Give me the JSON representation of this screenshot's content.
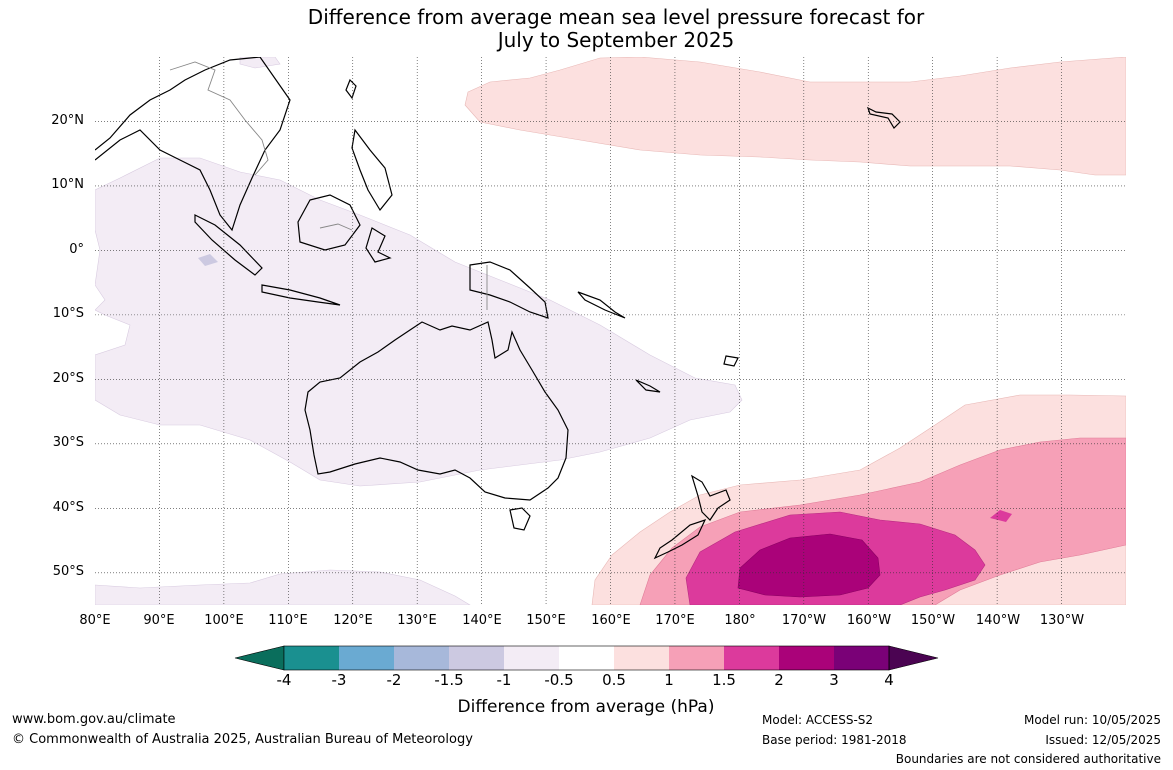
{
  "title": {
    "line1": "Difference from average mean sea level pressure forecast for",
    "line2": "July to September 2025"
  },
  "map": {
    "type": "filled-contour anomaly map",
    "extent": {
      "lon_min": 80,
      "lon_max": 240,
      "lat_min": -55,
      "lat_max": 30
    },
    "graticule": "dotted",
    "lat_labels": [
      "20°N",
      "10°N",
      "0°",
      "10°S",
      "20°S",
      "30°S",
      "40°S",
      "50°S"
    ],
    "lon_labels": [
      "80°E",
      "90°E",
      "100°E",
      "110°E",
      "120°E",
      "130°E",
      "140°E",
      "150°E",
      "160°E",
      "170°E",
      "180°",
      "170°W",
      "160°W",
      "150°W",
      "140°W",
      "130°W"
    ]
  },
  "colorbar": {
    "title": "Difference from average (hPa)",
    "tick_labels": [
      "-4",
      "-3",
      "-2",
      "-1.5",
      "-1",
      "-0.5",
      "0.5",
      "1",
      "1.5",
      "2",
      "3",
      "4"
    ],
    "low_extend_color": "#0a6e5c",
    "high_extend_color": "#4b0452",
    "bin_colors": [
      "#1a9090",
      "#6aaad2",
      "#a7b8da",
      "#ccc9e1",
      "#f3ecf5",
      "#ffffff",
      "#fce0df",
      "#f6a0b7",
      "#dc3a9c",
      "#aa0279",
      "#7a0177"
    ]
  },
  "footer": {
    "website": "www.bom.gov.au/climate",
    "copyright": "© Commonwealth of Australia 2025, Australian Bureau of Meteorology",
    "model": "Model: ACCESS-S2",
    "base_period": "Base period: 1981-2018",
    "model_run": "Model run: 10/05/2025",
    "issued": "Issued: 12/05/2025",
    "disclaimer": "Boundaries are not considered authoritative"
  }
}
